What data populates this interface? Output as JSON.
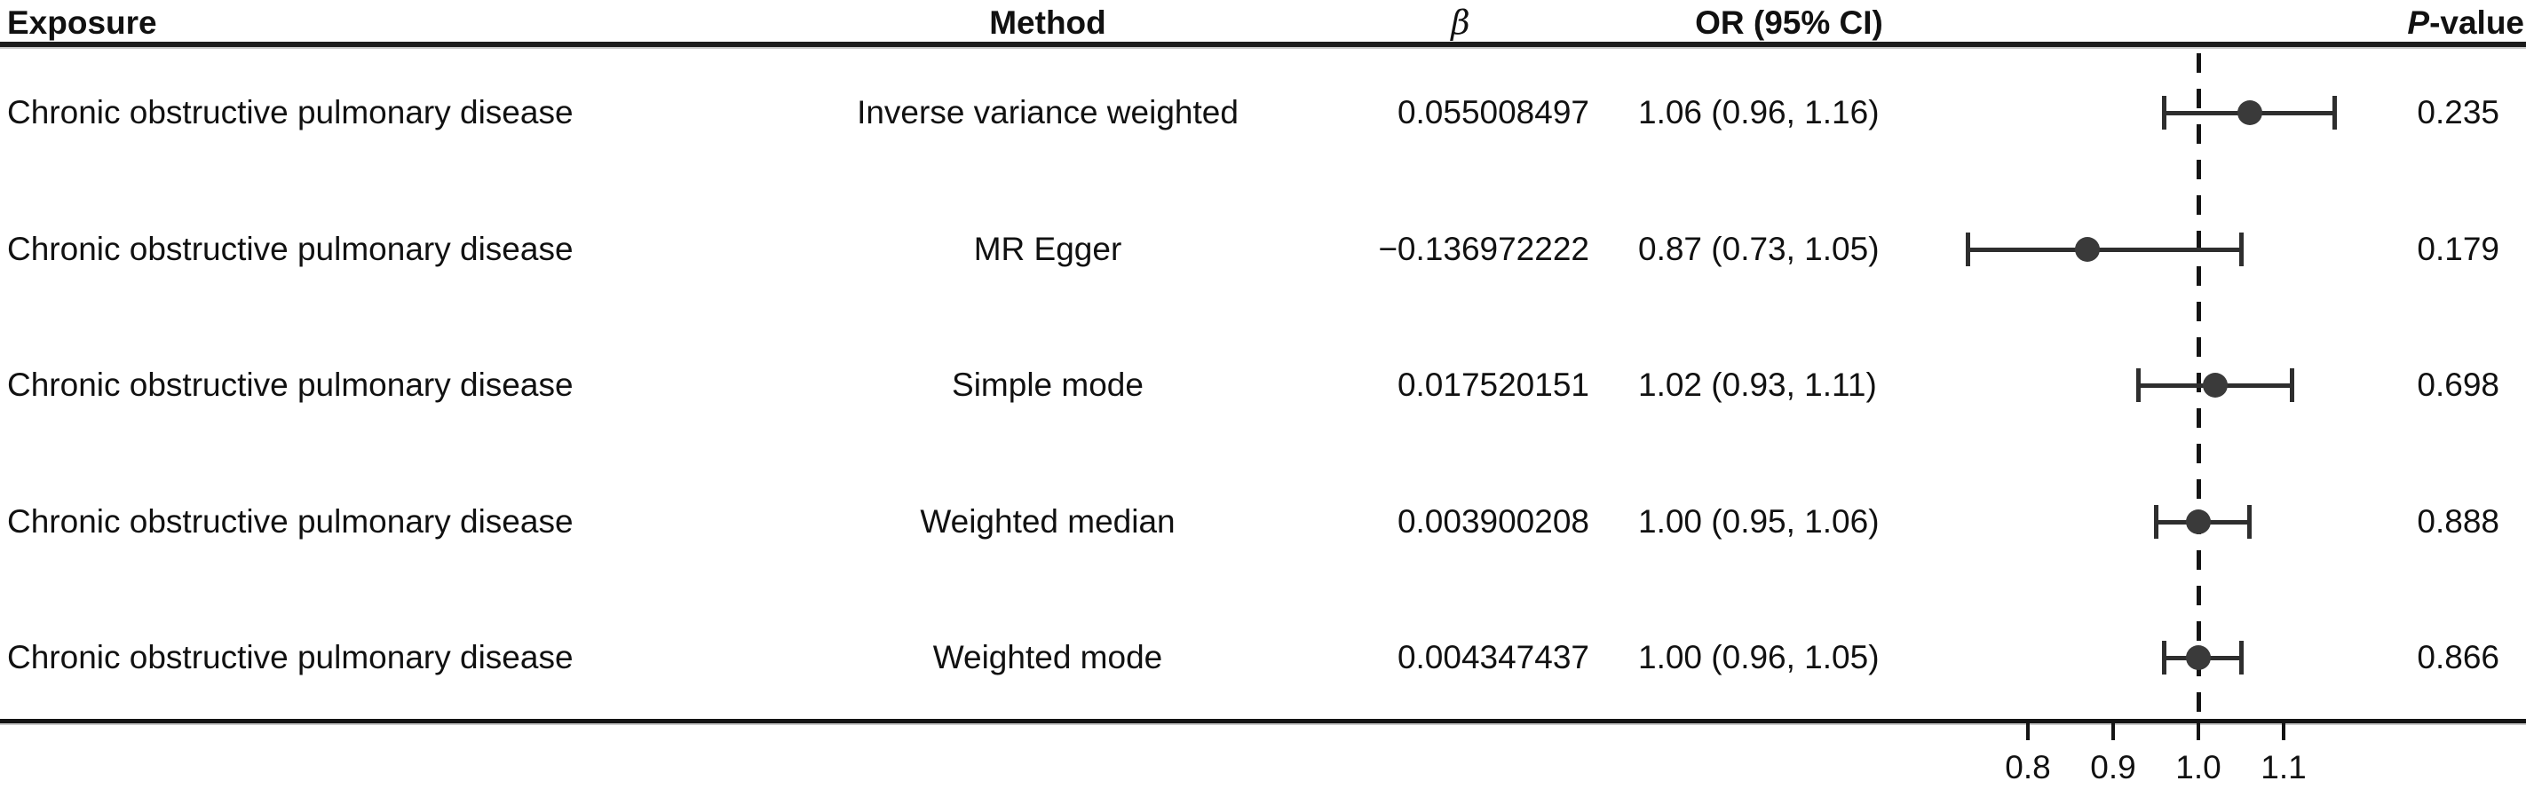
{
  "figure": {
    "headers": {
      "exposure": "Exposure",
      "method": "Method",
      "beta": "β",
      "or_ci": "OR (95% CI)",
      "pvalue_italic": "P",
      "pvalue_rest": "-value"
    },
    "rows": [
      {
        "exposure": "Chronic obstructive pulmonary disease",
        "method": "Inverse variance weighted",
        "beta": "0.055008497",
        "or_ci": "1.06 (0.96, 1.16)",
        "pvalue": "0.235"
      },
      {
        "exposure": "Chronic obstructive pulmonary disease",
        "method": "MR Egger",
        "beta": "−0.136972222",
        "or_ci": "0.87 (0.73, 1.05)",
        "pvalue": "0.179"
      },
      {
        "exposure": "Chronic obstructive pulmonary disease",
        "method": "Simple mode",
        "beta": "0.017520151",
        "or_ci": "1.02 (0.93, 1.11)",
        "pvalue": "0.698"
      },
      {
        "exposure": "Chronic obstructive pulmonary disease",
        "method": "Weighted median",
        "beta": "0.003900208",
        "or_ci": "1.00 (0.95, 1.06)",
        "pvalue": "0.888"
      },
      {
        "exposure": "Chronic obstructive pulmonary disease",
        "method": "Weighted mode",
        "beta": "0.004347437",
        "or_ci": "1.00 (0.96, 1.05)",
        "pvalue": "0.866"
      }
    ]
  },
  "chart_data": {
    "type": "scatter",
    "subtype": "forest-plot",
    "title": "",
    "xlabel": "",
    "ylabel": "",
    "exposure": "Chronic obstructive pulmonary disease",
    "x_axis": {
      "tick_labels": [
        "0.8",
        "0.9",
        "1.0",
        "1.1"
      ],
      "tick_values": [
        0.8,
        0.9,
        1.0,
        1.1
      ],
      "reference_line": 1.0,
      "scale": "linear"
    },
    "rows": [
      {
        "method": "Inverse variance weighted",
        "beta": 0.055008497,
        "or": 1.06,
        "ci_low": 0.96,
        "ci_high": 1.16,
        "pvalue": 0.235
      },
      {
        "method": "MR Egger",
        "beta": -0.136972222,
        "or": 0.87,
        "ci_low": 0.73,
        "ci_high": 1.05,
        "pvalue": 0.179
      },
      {
        "method": "Simple mode",
        "beta": 0.017520151,
        "or": 1.02,
        "ci_low": 0.93,
        "ci_high": 1.11,
        "pvalue": 0.698
      },
      {
        "method": "Weighted median",
        "beta": 0.003900208,
        "or": 1.0,
        "ci_low": 0.95,
        "ci_high": 1.06,
        "pvalue": 0.888
      },
      {
        "method": "Weighted mode",
        "beta": 0.004347437,
        "or": 1.0,
        "ci_low": 0.96,
        "ci_high": 1.05,
        "pvalue": 0.866
      }
    ],
    "colors": {
      "marker": "#3a3a3a",
      "line": "#2e2e2e",
      "text": "#111111",
      "reference_line": "#141414"
    }
  }
}
